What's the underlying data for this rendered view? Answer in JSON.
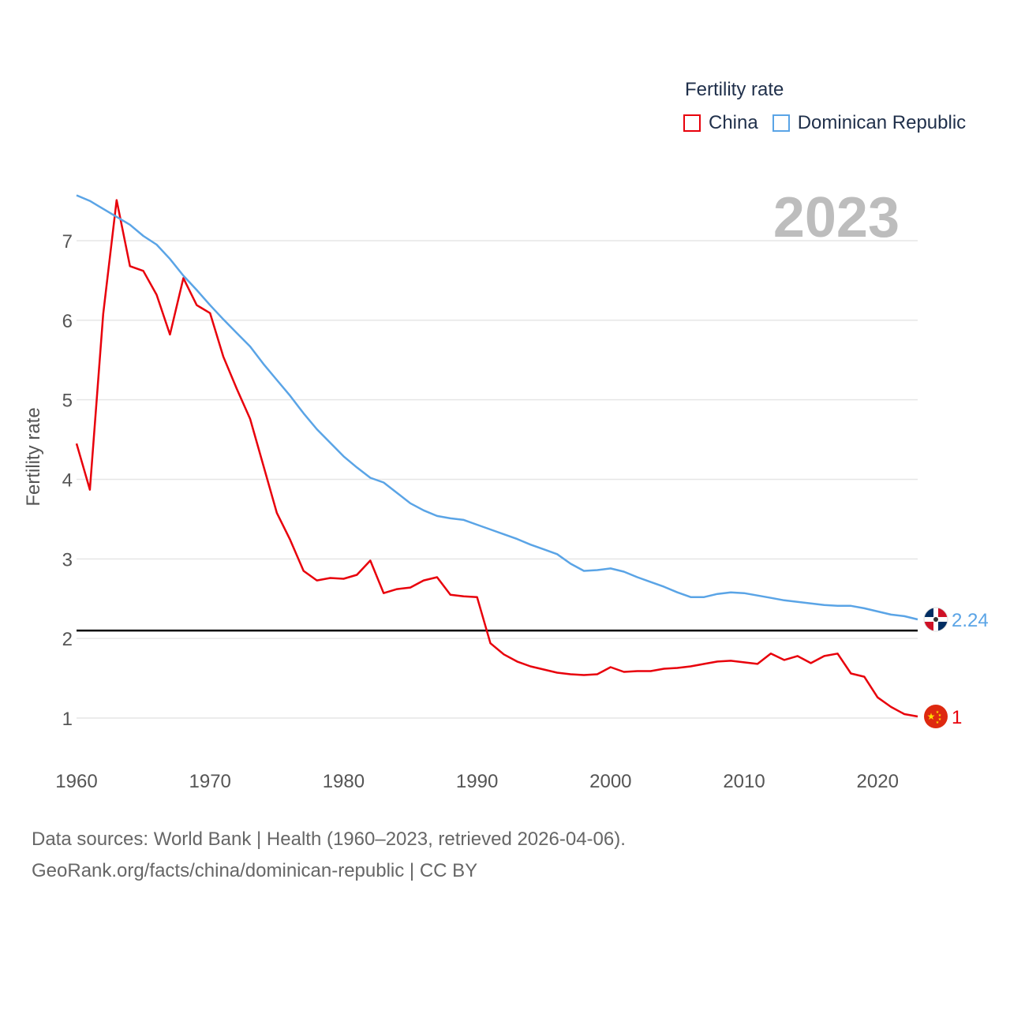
{
  "legend": {
    "title": "Fertility rate",
    "items": [
      {
        "label": "China",
        "color": "#e8000b"
      },
      {
        "label": "Dominican Republic",
        "color": "#5aa4e6"
      }
    ]
  },
  "footer": {
    "line1": "Data sources: World Bank | Health (1960–2023, retrieved 2026-04-06).",
    "line2": "GeoRank.org/facts/china/dominican-republic | CC BY"
  },
  "chart_data": {
    "type": "line",
    "title": "Fertility rate",
    "current_year_label": "2023",
    "ylabel": "Fertility rate",
    "xlabel": "",
    "xlim": [
      1960,
      2023
    ],
    "ylim": [
      0.6,
      7.8
    ],
    "x_ticks": [
      1960,
      1970,
      1980,
      1990,
      2000,
      2010,
      2020
    ],
    "y_ticks": [
      1,
      2,
      3,
      4,
      5,
      6,
      7
    ],
    "reference_line": {
      "y": 2.1,
      "color": "#000000"
    },
    "x": [
      1960,
      1961,
      1962,
      1963,
      1964,
      1965,
      1966,
      1967,
      1968,
      1969,
      1970,
      1971,
      1972,
      1973,
      1974,
      1975,
      1976,
      1977,
      1978,
      1979,
      1980,
      1981,
      1982,
      1983,
      1984,
      1985,
      1986,
      1987,
      1988,
      1989,
      1990,
      1991,
      1992,
      1993,
      1994,
      1995,
      1996,
      1997,
      1998,
      1999,
      2000,
      2001,
      2002,
      2003,
      2004,
      2005,
      2006,
      2007,
      2008,
      2009,
      2010,
      2011,
      2012,
      2013,
      2014,
      2015,
      2016,
      2017,
      2018,
      2019,
      2020,
      2021,
      2022,
      2023
    ],
    "series": [
      {
        "name": "China",
        "color": "#e8000b",
        "flag": "china-flag",
        "end_label": "1",
        "values": [
          4.45,
          3.87,
          6.08,
          7.51,
          6.68,
          6.62,
          6.32,
          5.82,
          6.53,
          6.19,
          6.09,
          5.54,
          5.14,
          4.76,
          4.17,
          3.58,
          3.24,
          2.85,
          2.73,
          2.76,
          2.75,
          2.8,
          2.98,
          2.57,
          2.62,
          2.64,
          2.73,
          2.77,
          2.55,
          2.53,
          2.52,
          1.94,
          1.8,
          1.71,
          1.65,
          1.61,
          1.57,
          1.55,
          1.54,
          1.55,
          1.64,
          1.58,
          1.59,
          1.59,
          1.62,
          1.63,
          1.65,
          1.68,
          1.71,
          1.72,
          1.7,
          1.68,
          1.81,
          1.73,
          1.78,
          1.69,
          1.78,
          1.81,
          1.56,
          1.52,
          1.26,
          1.14,
          1.05,
          1.02
        ]
      },
      {
        "name": "Dominican Republic",
        "color": "#5aa4e6",
        "flag": "dominican-republic-flag",
        "end_label": "2.24",
        "values": [
          7.57,
          7.5,
          7.4,
          7.3,
          7.2,
          7.06,
          6.95,
          6.77,
          6.56,
          6.38,
          6.19,
          6.01,
          5.84,
          5.67,
          5.45,
          5.25,
          5.05,
          4.83,
          4.63,
          4.46,
          4.29,
          4.15,
          4.02,
          3.96,
          3.83,
          3.7,
          3.61,
          3.54,
          3.51,
          3.49,
          3.43,
          3.37,
          3.31,
          3.25,
          3.18,
          3.12,
          3.06,
          2.94,
          2.85,
          2.86,
          2.88,
          2.84,
          2.77,
          2.71,
          2.65,
          2.58,
          2.52,
          2.52,
          2.56,
          2.58,
          2.57,
          2.54,
          2.51,
          2.48,
          2.46,
          2.44,
          2.42,
          2.41,
          2.41,
          2.38,
          2.34,
          2.3,
          2.28,
          2.24
        ]
      }
    ]
  }
}
